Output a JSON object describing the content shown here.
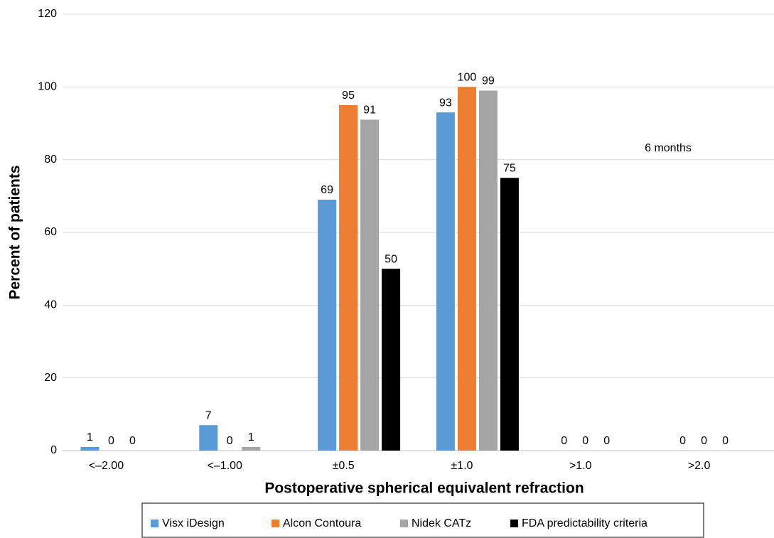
{
  "chart_data": {
    "type": "bar",
    "title": null,
    "x_label": "Postoperative spherical equivalent refraction",
    "y_label": "Percent of patients",
    "annotation": "6 months",
    "categories": [
      "<–2.00",
      "<–1.00",
      "±0.5",
      "±1.0",
      ">1.0",
      ">2.0"
    ],
    "series": [
      {
        "name": "Visx iDesign",
        "color": "#5b9bd5",
        "values": [
          1,
          7,
          69,
          93,
          0,
          0
        ]
      },
      {
        "name": "Alcon Contoura",
        "color": "#ed7d31",
        "values": [
          0,
          0,
          95,
          100,
          0,
          0
        ]
      },
      {
        "name": "Nidek CATz",
        "color": "#a5a5a5",
        "values": [
          0,
          1,
          91,
          99,
          0,
          0
        ]
      },
      {
        "name": "FDA predictability criteria",
        "color": "#000000",
        "values": [
          null,
          null,
          50,
          75,
          null,
          null
        ]
      }
    ],
    "ylim": [
      0,
      120
    ],
    "yticks": [
      0,
      20,
      40,
      60,
      80,
      100,
      120
    ],
    "grid": true,
    "legend": "bottom"
  }
}
